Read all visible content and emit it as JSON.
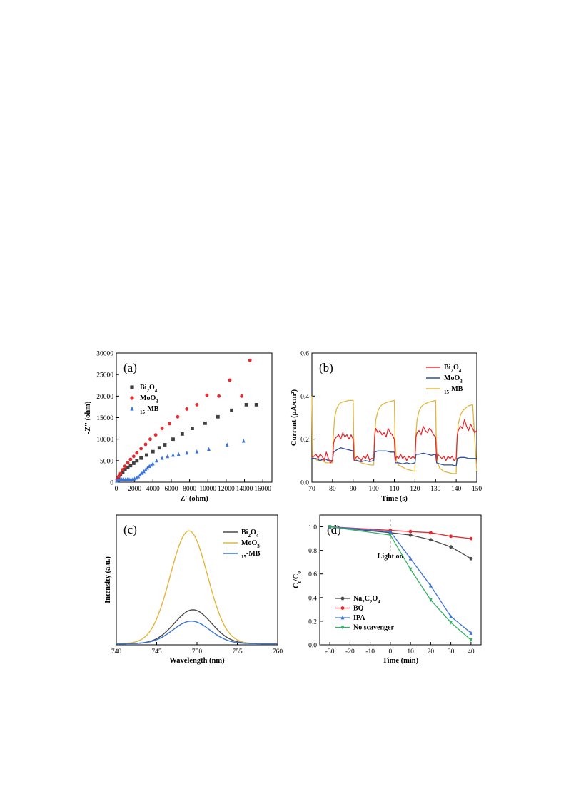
{
  "colors": {
    "black": "#404040",
    "red": "#e8292e",
    "blue": "#3a73d9",
    "darkblue": "#2a4f9e",
    "gold": "#e3b53b",
    "green": "#36b36a",
    "gray": "#4a4a4a"
  },
  "chart_data": [
    {
      "id": "a",
      "panel_label": "(a)",
      "type": "scatter",
      "xlabel": "Z' (ohm)",
      "ylabel": "-Z'' (ohm)",
      "xlim": [
        0,
        17000
      ],
      "ylim": [
        0,
        30000
      ],
      "xticks": [
        "0",
        "2000",
        "4000",
        "6000",
        "8000",
        "10000",
        "12000",
        "14000",
        "16000"
      ],
      "yticks": [
        "0",
        "5000",
        "10000",
        "15000",
        "20000",
        "25000",
        "30000"
      ],
      "legend": "top-left",
      "series": [
        {
          "name": "Bi2O4",
          "color": "black",
          "marker": "square",
          "x": [
            100,
            250,
            450,
            700,
            950,
            1250,
            1550,
            1900,
            2250,
            2700,
            3300,
            4000,
            4700,
            5300,
            6200,
            7200,
            8300,
            9700,
            11100,
            12600,
            14200,
            15300
          ],
          "y": [
            400,
            1050,
            1700,
            2350,
            2900,
            3400,
            3850,
            4400,
            5000,
            5600,
            6300,
            7100,
            8000,
            8700,
            10000,
            11200,
            12500,
            13700,
            15200,
            16700,
            18000,
            18000
          ]
        },
        {
          "name": "MoO3",
          "color": "red",
          "marker": "circle",
          "x": [
            80,
            250,
            450,
            700,
            950,
            1250,
            1550,
            1900,
            2250,
            2700,
            3200,
            3700,
            4300,
            5000,
            5800,
            6700,
            7700,
            8800,
            9900,
            11200,
            12400,
            13700,
            14600
          ],
          "y": [
            600,
            1300,
            2000,
            2900,
            3700,
            4500,
            5300,
            6000,
            6800,
            7800,
            8800,
            10000,
            11000,
            12500,
            13600,
            15200,
            17000,
            18000,
            20200,
            20000,
            23700,
            20000,
            28300
          ]
        },
        {
          "name": "15-MB",
          "color": "blue",
          "marker": "triangle",
          "x": [
            50,
            200,
            400,
            600,
            800,
            1000,
            1200,
            1400,
            1600,
            1800,
            2000,
            2200,
            2400,
            2600,
            2800,
            3000,
            3200,
            3400,
            3600,
            3800,
            4000,
            4400,
            5000,
            5600,
            6200,
            6800,
            7700,
            8800,
            10100,
            12100,
            13900
          ],
          "y": [
            300,
            500,
            600,
            650,
            650,
            650,
            650,
            650,
            650,
            700,
            800,
            1000,
            1300,
            1700,
            2100,
            2500,
            2900,
            3300,
            3700,
            4000,
            4300,
            5000,
            5600,
            6000,
            6300,
            6500,
            6800,
            7100,
            7700,
            8700,
            9600
          ]
        }
      ]
    },
    {
      "id": "b",
      "panel_label": "(b)",
      "type": "line",
      "xlabel": "Time (s)",
      "ylabel": "Current (μA/cm²)",
      "xlim": [
        70,
        150
      ],
      "ylim": [
        0.0,
        0.6
      ],
      "xticks": [
        "70",
        "80",
        "90",
        "100",
        "110",
        "120",
        "130",
        "140",
        "150"
      ],
      "yticks": [
        "0.0",
        "0.2",
        "0.4",
        "0.6"
      ],
      "legend": "top-right",
      "series": [
        {
          "name": "Bi2O4",
          "color": "red",
          "x": [
            70,
            71,
            72,
            73,
            74,
            75,
            76,
            77,
            78,
            79,
            80,
            80.5,
            81,
            82,
            83,
            84,
            85,
            86,
            87,
            88,
            89,
            90,
            90.5,
            91,
            92,
            93,
            94,
            95,
            96,
            97,
            98,
            99,
            100,
            100.5,
            101,
            102,
            103,
            104,
            105,
            106,
            107,
            108,
            109,
            110,
            110.5,
            111,
            112,
            113,
            114,
            115,
            116,
            117,
            118,
            119,
            120,
            120.5,
            121,
            122,
            123,
            124,
            125,
            126,
            127,
            128,
            129,
            130,
            130.5,
            131,
            132,
            133,
            134,
            135,
            136,
            137,
            138,
            139,
            140,
            140.5,
            141,
            142,
            143,
            144,
            145,
            146,
            147,
            148,
            149,
            150
          ],
          "y": [
            0.12,
            0.12,
            0.13,
            0.11,
            0.13,
            0.12,
            0.1,
            0.14,
            0.11,
            0.09,
            0.1,
            0.18,
            0.2,
            0.21,
            0.22,
            0.2,
            0.23,
            0.21,
            0.22,
            0.2,
            0.22,
            0.2,
            0.1,
            0.11,
            0.12,
            0.11,
            0.1,
            0.12,
            0.11,
            0.13,
            0.1,
            0.11,
            0.11,
            0.22,
            0.25,
            0.23,
            0.24,
            0.22,
            0.23,
            0.21,
            0.25,
            0.23,
            0.22,
            0.2,
            0.1,
            0.12,
            0.11,
            0.13,
            0.11,
            0.12,
            0.1,
            0.12,
            0.11,
            0.12,
            0.11,
            0.21,
            0.23,
            0.24,
            0.22,
            0.26,
            0.24,
            0.23,
            0.25,
            0.24,
            0.22,
            0.21,
            0.1,
            0.13,
            0.12,
            0.11,
            0.12,
            0.1,
            0.12,
            0.11,
            0.12,
            0.1,
            0.11,
            0.22,
            0.24,
            0.26,
            0.25,
            0.29,
            0.26,
            0.24,
            0.27,
            0.25,
            0.23,
            0.24
          ]
        },
        {
          "name": "MoO3",
          "color": "darkblue",
          "x": [
            70,
            72,
            74,
            76,
            78,
            80,
            80.5,
            82,
            84,
            86,
            88,
            90,
            90.5,
            92,
            94,
            96,
            98,
            100,
            100.5,
            102,
            104,
            106,
            108,
            110,
            110.5,
            112,
            114,
            116,
            118,
            120,
            120.5,
            122,
            124,
            126,
            128,
            130,
            130.5,
            132,
            134,
            136,
            138,
            140,
            140.5,
            142,
            144,
            146,
            148,
            150
          ],
          "y": [
            0.11,
            0.11,
            0.1,
            0.11,
            0.1,
            0.1,
            0.14,
            0.15,
            0.16,
            0.155,
            0.15,
            0.145,
            0.1,
            0.1,
            0.095,
            0.1,
            0.095,
            0.1,
            0.14,
            0.145,
            0.145,
            0.145,
            0.14,
            0.14,
            0.09,
            0.09,
            0.085,
            0.09,
            0.085,
            0.09,
            0.13,
            0.13,
            0.135,
            0.13,
            0.125,
            0.13,
            0.09,
            0.085,
            0.08,
            0.08,
            0.08,
            0.075,
            0.11,
            0.115,
            0.115,
            0.11,
            0.11,
            0.11
          ]
        },
        {
          "name": "15-MB",
          "color": "gold",
          "x": [
            70,
            70.3,
            71,
            73,
            75,
            77,
            79,
            80,
            80.3,
            81,
            82,
            83,
            84,
            86,
            88,
            90,
            90.3,
            91,
            92,
            94,
            96,
            98,
            100,
            100.3,
            101,
            102,
            103,
            104,
            106,
            108,
            110,
            110.3,
            111,
            112,
            114,
            116,
            118,
            120,
            120.3,
            121,
            122,
            123,
            124,
            126,
            128,
            130,
            130.3,
            131,
            132,
            134,
            136,
            138,
            140,
            140.3,
            141,
            142,
            143,
            144,
            146,
            148,
            150
          ],
          "y": [
            0.4,
            0.12,
            0.11,
            0.1,
            0.1,
            0.09,
            0.09,
            0.09,
            0.2,
            0.3,
            0.34,
            0.36,
            0.37,
            0.375,
            0.38,
            0.38,
            0.2,
            0.11,
            0.1,
            0.09,
            0.085,
            0.08,
            0.08,
            0.2,
            0.29,
            0.33,
            0.35,
            0.36,
            0.37,
            0.375,
            0.38,
            0.2,
            0.1,
            0.08,
            0.07,
            0.06,
            0.055,
            0.05,
            0.2,
            0.29,
            0.33,
            0.35,
            0.36,
            0.37,
            0.375,
            0.38,
            0.2,
            0.09,
            0.065,
            0.05,
            0.045,
            0.04,
            0.04,
            0.18,
            0.27,
            0.31,
            0.33,
            0.34,
            0.355,
            0.36,
            0.05
          ]
        }
      ]
    },
    {
      "id": "c",
      "panel_label": "(c)",
      "type": "line",
      "xlabel": "Wavelength (nm)",
      "ylabel": "Intensity (a.u.)",
      "xlim": [
        740,
        760
      ],
      "ylim": [
        0,
        1.15
      ],
      "xticks": [
        "740",
        "745",
        "750",
        "755",
        "760"
      ],
      "legend": "top-right",
      "series": [
        {
          "name": "Bi2O4",
          "color": "gray",
          "center": 749.5,
          "sigma": 2.3,
          "amplitude": 0.3
        },
        {
          "name": "MoO3",
          "color": "gold",
          "center": 749.0,
          "sigma": 2.3,
          "amplitude": 1.0
        },
        {
          "name": "15-MB",
          "color": "blue",
          "center": 749.3,
          "sigma": 2.3,
          "amplitude": 0.2
        }
      ]
    },
    {
      "id": "d",
      "panel_label": "(d)",
      "type": "line",
      "xlabel": "Time (min)",
      "ylabel": "Ct/C0",
      "xlim": [
        -35,
        45
      ],
      "ylim": [
        0.0,
        1.1
      ],
      "xticks": [
        "-30",
        "-20",
        "-10",
        "0",
        "10",
        "20",
        "30",
        "40"
      ],
      "yticks": [
        "0.0",
        "0.2",
        "0.4",
        "0.6",
        "0.8",
        "1.0"
      ],
      "legend": "bottom-left",
      "annotation": "Light on",
      "series": [
        {
          "name": "Na2C2O4",
          "color": "gray",
          "marker": "circle",
          "x": [
            -30,
            0,
            10,
            20,
            30,
            40
          ],
          "y": [
            1.0,
            0.95,
            0.93,
            0.89,
            0.83,
            0.73
          ]
        },
        {
          "name": "BQ",
          "color": "red",
          "marker": "circle",
          "x": [
            -30,
            0,
            10,
            20,
            30,
            40
          ],
          "y": [
            1.0,
            0.97,
            0.96,
            0.95,
            0.92,
            0.9
          ]
        },
        {
          "name": "IPA",
          "color": "blue",
          "marker": "triangle",
          "x": [
            -30,
            0,
            10,
            20,
            30,
            40
          ],
          "y": [
            1.0,
            0.96,
            0.73,
            0.5,
            0.24,
            0.1
          ]
        },
        {
          "name": "No scavenger",
          "color": "green",
          "marker": "triangle-down",
          "x": [
            -30,
            0,
            10,
            20,
            30,
            40
          ],
          "y": [
            1.0,
            0.93,
            0.64,
            0.38,
            0.19,
            0.04
          ]
        }
      ]
    }
  ]
}
